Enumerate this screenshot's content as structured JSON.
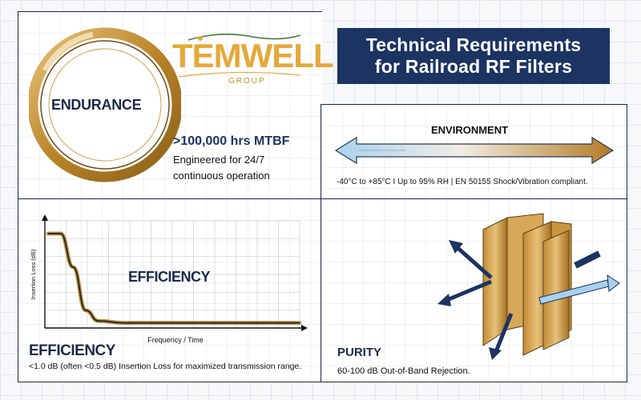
{
  "header": {
    "title_line1": "Technical Requirements",
    "title_line2": "for Railroad RF Filters",
    "background": "#1b3461"
  },
  "logo": {
    "wordmark": "TEMWELL",
    "subtitle": "GROUP",
    "color": "#e3a93a"
  },
  "endurance": {
    "ring_label": "ENDURANCE",
    "metric": ">100,000 hrs MTBF",
    "description": "Engineered for 24/7 continuous operation"
  },
  "environment": {
    "title": "ENVIRONMENT",
    "description": "-40°C to +85°C I Up to 95% RH | EN 50155 Shock/Vibration compliant."
  },
  "efficiency": {
    "overlay_label": "EFFICIENCY",
    "title": "EFFICIENCY",
    "description": "<1.0 dB (often <0.5 dB) Insertion Loss for maximized transmission range.",
    "chart_data": {
      "type": "line",
      "title": "EFFICIENCY",
      "xlabel": "Frequency / Time",
      "ylabel": "Insertion Loss (dB)",
      "grid": true,
      "x": [
        0,
        0.05,
        0.1,
        0.15,
        0.2,
        0.3,
        0.5,
        0.75,
        1.0
      ],
      "series": [
        {
          "values": [
            0.95,
            0.95,
            0.6,
            0.15,
            0.04,
            0.02,
            0.02,
            0.02,
            0.02
          ]
        }
      ]
    }
  },
  "purity": {
    "title": "PURITY",
    "description": "60-100 dB Out-of-Band Rejection."
  },
  "colors": {
    "navy": "#1b3461",
    "gold": "#c9942f",
    "light_blue": "#a8d0ec"
  }
}
